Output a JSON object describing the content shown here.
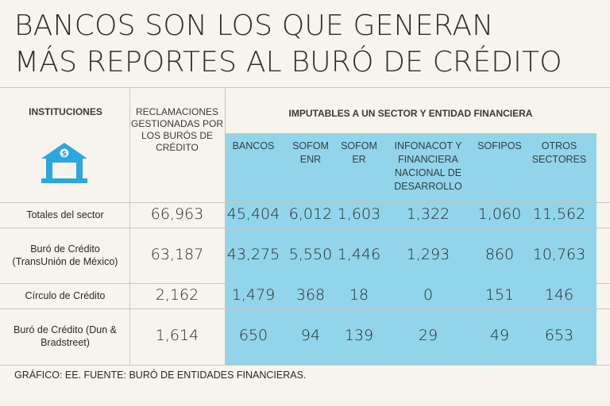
{
  "title_lines": [
    "BANCOS SON LOS QUE GENERAN",
    "MÁS REPORTES AL BURÓ DE CRÉDITO"
  ],
  "chart_data": {
    "type": "table",
    "title": "BANCOS SON LOS QUE GENERAN MÁS REPORTES AL BURÓ DE CRÉDITO",
    "header_institutions": "INSTITUCIONES",
    "header_claims": "RECLAMACIONES GESTIONADAS POR LOS BURÓS DE CRÉDITO",
    "header_group": "IMPUTABLES A UN SECTOR Y ENTIDAD FINANCIERA",
    "columns": [
      "BANCOS",
      "SOFOM ENR",
      "SOFOM ER",
      "INFONACOT Y FINANCIERA NACIONAL DE DESARROLLO",
      "SOFIPOS",
      "OTROS SECTORES"
    ],
    "rows": [
      {
        "label": "Totales del sector",
        "claims": "66,963",
        "values": [
          "45,404",
          "6,012",
          "1,603",
          "1,322",
          "1,060",
          "11,562"
        ]
      },
      {
        "label": "Buró de Crédito (TransUnión de México)",
        "claims": "63,187",
        "values": [
          "43,275",
          "5,550",
          "1,446",
          "1,293",
          "860",
          "10,763"
        ]
      },
      {
        "label": "Círculo de Crédito",
        "claims": "2,162",
        "values": [
          "1,479",
          "368",
          "18",
          "0",
          "151",
          "146"
        ]
      },
      {
        "label": "Buró de Crédito (Dun & Bradstreet)",
        "claims": "1,614",
        "values": [
          "650",
          "94",
          "139",
          "29",
          "49",
          "653"
        ]
      }
    ]
  },
  "footer": "GRÁFICO: EE. FUENTE: BURÓ DE ENTIDADES FINANCIERAS.",
  "colors": {
    "band": "#92d5ea",
    "icon": "#2aa7df"
  }
}
